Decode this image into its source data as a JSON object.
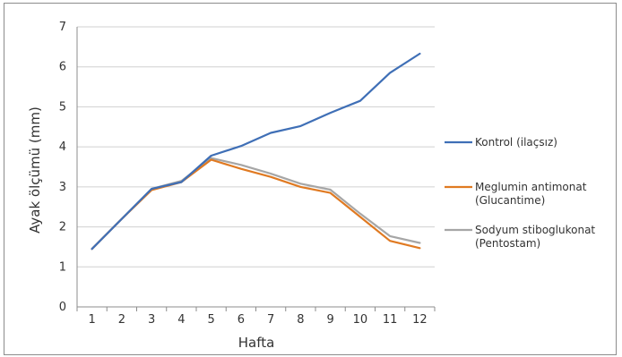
{
  "chart_data": {
    "type": "line",
    "xlabel": "Hafta",
    "ylabel": "Ayak ölçümü (mm)",
    "ylim": [
      0,
      7
    ],
    "x": [
      1,
      2,
      3,
      4,
      5,
      6,
      7,
      8,
      9,
      10,
      11,
      12
    ],
    "grid": "horizontal",
    "legend_position": "right",
    "series": [
      {
        "name": "Kontrol (ilaçsız)",
        "color": "#3f6fb6",
        "values": [
          1.45,
          2.2,
          2.95,
          3.12,
          3.78,
          4.02,
          4.35,
          4.52,
          4.85,
          5.15,
          5.85,
          6.33
        ]
      },
      {
        "name": "Meglumin antimonat (Glucantime)",
        "color": "#e07a22",
        "values": [
          1.45,
          2.2,
          2.92,
          3.12,
          3.68,
          3.45,
          3.25,
          3.0,
          2.85,
          2.25,
          1.65,
          1.47
        ]
      },
      {
        "name": "Sodyum stiboglukonat (Pentostam)",
        "color": "#a6a6a6",
        "values": [
          1.45,
          2.2,
          2.95,
          3.15,
          3.72,
          3.55,
          3.33,
          3.08,
          2.93,
          2.33,
          1.77,
          1.6
        ]
      }
    ]
  }
}
